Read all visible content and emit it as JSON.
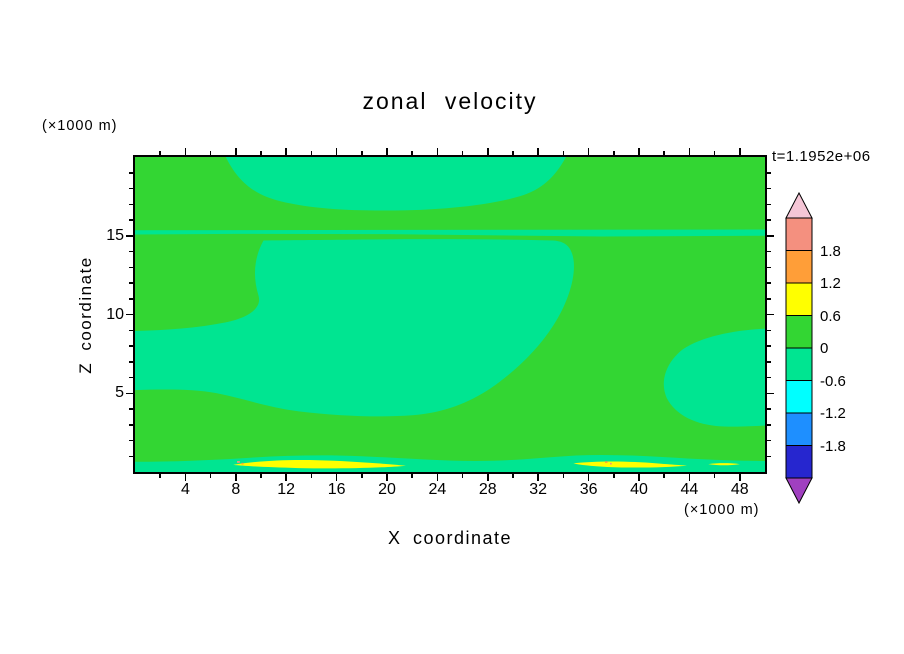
{
  "title": "zonal velocity",
  "time_label": "t=1.1952e+06",
  "axes": {
    "x_label": "X coordinate",
    "x_unit": "(×1000 m)",
    "y_label": "Z coordinate",
    "y_unit": "(×1000 m)"
  },
  "chart_data": {
    "type": "heatmap",
    "subtype": "filled-contour",
    "title": "zonal velocity",
    "annotation": "t=1.1952e+06",
    "xlabel": "X coordinate (×1000 m)",
    "ylabel": "Z coordinate (×1000 m)",
    "x_range": [
      0,
      50
    ],
    "y_range": [
      0,
      20
    ],
    "x_ticks": [
      4,
      8,
      12,
      16,
      20,
      24,
      28,
      32,
      36,
      40,
      44,
      48
    ],
    "x_minor_step": 2,
    "y_ticks": [
      5,
      10,
      15
    ],
    "y_minor_step": 1,
    "grid": false,
    "contour_levels": [
      -1.8,
      -1.2,
      -0.6,
      0,
      0.6,
      1.2,
      1.8
    ],
    "palette": {
      "green_0_to_0p6": "#33d633",
      "spring_m0p6_to_0": "#00e591",
      "yellow_0p6_to_1p2": "#ffff00",
      "speck_salmon": "#f4907f",
      "speck_orange": "#ff9e38"
    },
    "colorbar": {
      "position": "right",
      "labels": [
        "1.8",
        "1.2",
        "0.6",
        "0",
        "-0.6",
        "-1.2",
        "-1.8"
      ],
      "band_colors_top_to_bottom": [
        "#f4907f",
        "#ff9e38",
        "#ffff00",
        "#33d633",
        "#00e591",
        "#00ffff",
        "#1e8fff",
        "#2626cf"
      ],
      "arrow_top_color": "#f5c6d6",
      "arrow_bottom_color": "#a040c0"
    },
    "field_summary": {
      "dominant_band": "0 to 0.6 (green) over most of the domain",
      "negative_band_regions": "-0.6 to 0 (spring green): top-center blob x≈7-34 above z≈16.6; thin layer across full width at z≈15.2; large central blob x≈9-35, z≈3.5-14.7 with arm to left edge z≈6-9; right-edge blob x≈41-50, z≈3-9; thin strip along bottom boundary",
      "positive_extremes": "0.6 to 1.2 (yellow) streaks inside bottom strip near x≈8-22 and x≈35-44 with tiny >1.2 specks near x≈8 and x≈38"
    },
    "grid_values": {
      "x_values": [
        0,
        5,
        10,
        15,
        20,
        25,
        30,
        35,
        40,
        45,
        50
      ],
      "z_values_top_to_bottom": [
        20,
        17.5,
        15,
        12.5,
        10,
        7.5,
        5,
        2.5,
        0
      ],
      "values": [
        [
          0.1,
          0.1,
          -0.1,
          -0.1,
          -0.1,
          -0.1,
          -0.1,
          0.1,
          0.1,
          0.1,
          0.1
        ],
        [
          0.1,
          0.1,
          -0.1,
          -0.1,
          -0.1,
          -0.1,
          -0.1,
          0.1,
          0.1,
          0.1,
          0.1
        ],
        [
          -0.1,
          -0.1,
          -0.1,
          -0.1,
          -0.1,
          -0.1,
          -0.1,
          -0.1,
          -0.1,
          -0.1,
          -0.1
        ],
        [
          0.1,
          0.1,
          -0.1,
          -0.1,
          -0.1,
          -0.1,
          -0.1,
          0.1,
          0.1,
          0.1,
          0.1
        ],
        [
          0.1,
          0.1,
          -0.1,
          -0.1,
          -0.1,
          -0.1,
          -0.1,
          0.1,
          0.1,
          0.1,
          0.1
        ],
        [
          -0.1,
          -0.1,
          -0.1,
          -0.1,
          -0.1,
          -0.1,
          -0.1,
          0.1,
          0.1,
          -0.1,
          -0.1
        ],
        [
          0.1,
          0.1,
          0.1,
          -0.1,
          -0.1,
          -0.1,
          -0.1,
          0.1,
          0.1,
          -0.1,
          -0.1
        ],
        [
          0.1,
          0.1,
          0.1,
          0.1,
          0.1,
          0.1,
          0.1,
          0.1,
          0.1,
          -0.1,
          -0.1
        ],
        [
          -0.1,
          -0.1,
          0.8,
          0.8,
          0.8,
          -0.1,
          -0.1,
          0.8,
          0.8,
          -0.1,
          -0.1
        ]
      ]
    }
  }
}
